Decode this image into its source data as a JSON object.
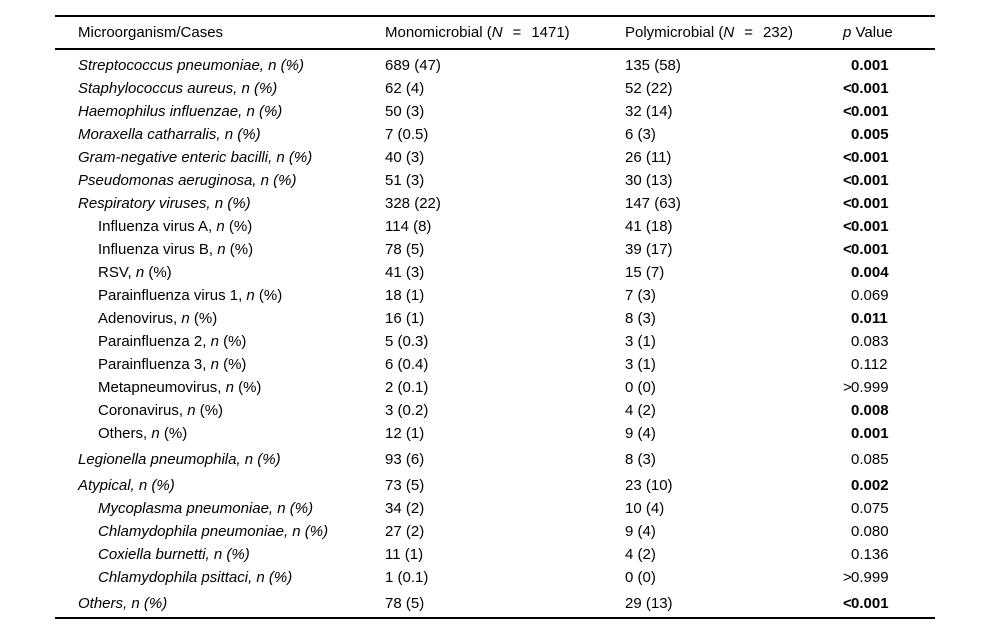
{
  "table": {
    "header": {
      "col1": "Microorganism/Cases",
      "col2": {
        "prefix": "Monomicrobial (",
        "n": "N",
        "eq": "=",
        "suffix": "1471)"
      },
      "col3": {
        "prefix": "Polymicrobial (",
        "n": "N",
        "eq": "=",
        "suffix": "232)"
      },
      "col4": {
        "p": "p",
        "rest": " Value"
      }
    },
    "label_suffix": {
      "comma": ", ",
      "n": "n",
      "pct": " (%)"
    },
    "rows": [
      {
        "name": "Streptococcus pneumoniae",
        "indent": false,
        "italic": true,
        "group_start": false,
        "mono": "689 (47)",
        "poly": "135 (58)",
        "p": "0.001",
        "p_bold": true
      },
      {
        "name": "Staphylococcus aureus",
        "indent": false,
        "italic": true,
        "group_start": false,
        "mono": "62 (4)",
        "poly": "52 (22)",
        "p": "<0.001",
        "p_bold": true
      },
      {
        "name": "Haemophilus influenzae",
        "indent": false,
        "italic": true,
        "group_start": false,
        "mono": "50 (3)",
        "poly": "32 (14)",
        "p": "<0.001",
        "p_bold": true
      },
      {
        "name": "Moraxella catharralis",
        "indent": false,
        "italic": true,
        "group_start": false,
        "mono": "7 (0.5)",
        "poly": "6 (3)",
        "p": "0.005",
        "p_bold": true
      },
      {
        "name": "Gram-negative enteric bacilli",
        "indent": false,
        "italic": true,
        "group_start": false,
        "mono": "40 (3)",
        "poly": "26 (11)",
        "p": "<0.001",
        "p_bold": true
      },
      {
        "name": "Pseudomonas aeruginosa",
        "indent": false,
        "italic": true,
        "group_start": false,
        "mono": "51 (3)",
        "poly": "30 (13)",
        "p": "<0.001",
        "p_bold": true
      },
      {
        "name": "Respiratory viruses",
        "indent": false,
        "italic": true,
        "group_start": false,
        "mono": "328 (22)",
        "poly": "147 (63)",
        "p": "<0.001",
        "p_bold": true
      },
      {
        "name": "Influenza virus A",
        "indent": true,
        "italic": false,
        "group_start": false,
        "mono": "114 (8)",
        "poly": "41 (18)",
        "p": "<0.001",
        "p_bold": true
      },
      {
        "name": "Influenza virus B",
        "indent": true,
        "italic": false,
        "group_start": false,
        "mono": "78 (5)",
        "poly": "39 (17)",
        "p": "<0.001",
        "p_bold": true
      },
      {
        "name": "RSV",
        "indent": true,
        "italic": false,
        "group_start": false,
        "mono": "41 (3)",
        "poly": "15 (7)",
        "p": "0.004",
        "p_bold": true
      },
      {
        "name": "Parainfluenza virus 1",
        "indent": true,
        "italic": false,
        "group_start": false,
        "mono": "18 (1)",
        "poly": "7 (3)",
        "p": "0.069",
        "p_bold": false
      },
      {
        "name": "Adenovirus",
        "indent": true,
        "italic": false,
        "group_start": false,
        "mono": "16 (1)",
        "poly": "8 (3)",
        "p": "0.011",
        "p_bold": true
      },
      {
        "name": "Parainfluenza 2",
        "indent": true,
        "italic": false,
        "group_start": false,
        "mono": "5 (0.3)",
        "poly": "3 (1)",
        "p": "0.083",
        "p_bold": false
      },
      {
        "name": "Parainfluenza 3",
        "indent": true,
        "italic": false,
        "group_start": false,
        "mono": "6 (0.4)",
        "poly": "3 (1)",
        "p": "0.112",
        "p_bold": false
      },
      {
        "name": "Metapneumovirus",
        "indent": true,
        "italic": false,
        "group_start": false,
        "mono": "2 (0.1)",
        "poly": "0 (0)",
        "p": ">0.999",
        "p_bold": false
      },
      {
        "name": "Coronavirus",
        "indent": true,
        "italic": false,
        "group_start": false,
        "mono": "3 (0.2)",
        "poly": "4 (2)",
        "p": "0.008",
        "p_bold": true
      },
      {
        "name": "Others",
        "indent": true,
        "italic": false,
        "group_start": false,
        "mono": "12 (1)",
        "poly": "9 (4)",
        "p": "0.001",
        "p_bold": true
      },
      {
        "name": "Legionella pneumophila",
        "indent": false,
        "italic": true,
        "group_start": true,
        "mono": "93 (6)",
        "poly": "8 (3)",
        "p": "0.085",
        "p_bold": false
      },
      {
        "name": "Atypical",
        "indent": false,
        "italic": true,
        "group_start": true,
        "mono": "73 (5)",
        "poly": "23 (10)",
        "p": "0.002",
        "p_bold": true
      },
      {
        "name": "Mycoplasma pneumoniae",
        "indent": true,
        "italic": true,
        "group_start": false,
        "mono": "34 (2)",
        "poly": "10 (4)",
        "p": "0.075",
        "p_bold": false
      },
      {
        "name": "Chlamydophila pneumoniae",
        "indent": true,
        "italic": true,
        "group_start": false,
        "mono": "27 (2)",
        "poly": "9 (4)",
        "p": "0.080",
        "p_bold": false
      },
      {
        "name": "Coxiella burnetti",
        "indent": true,
        "italic": true,
        "group_start": false,
        "mono": "11 (1)",
        "poly": "4 (2)",
        "p": "0.136",
        "p_bold": false
      },
      {
        "name": "Chlamydophila psittaci",
        "indent": true,
        "italic": true,
        "group_start": false,
        "mono": "1 (0.1)",
        "poly": "0 (0)",
        "p": ">0.999",
        "p_bold": false
      },
      {
        "name": "Others",
        "indent": false,
        "italic": true,
        "group_start": true,
        "mono": "78 (5)",
        "poly": "29 (13)",
        "p": "<0.001",
        "p_bold": true
      }
    ]
  }
}
